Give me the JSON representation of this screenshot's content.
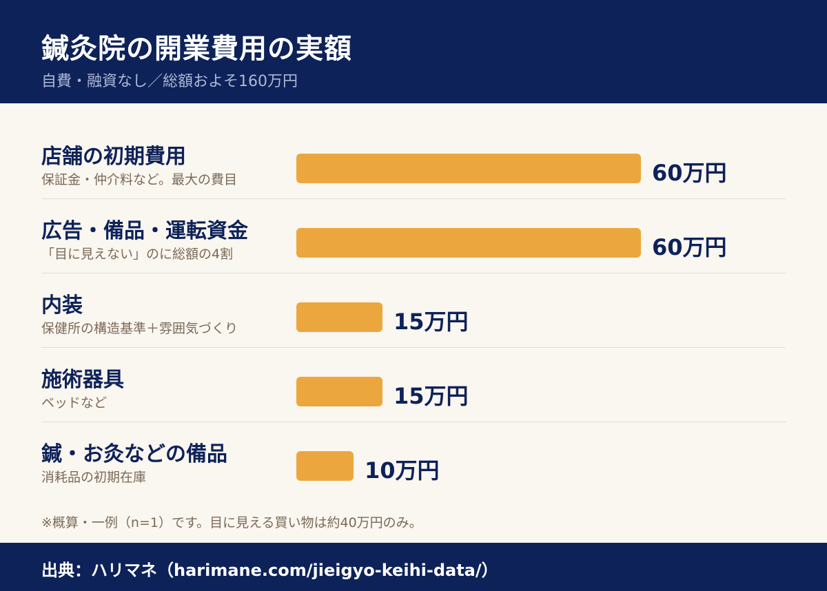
{
  "header": {
    "title": "鍼灸院の開業費用の実額",
    "subtitle": "自費・融資なし／総額およそ160万円"
  },
  "chart_data": {
    "type": "bar",
    "orientation": "horizontal",
    "title": "鍼灸院の開業費用の実額",
    "subtitle": "自費・融資なし／総額およそ160万円",
    "unit": "万円",
    "xlim": [
      0,
      60
    ],
    "grid": false,
    "legend": "none",
    "categories": [
      "店舗の初期費用",
      "広告・備品・運転資金",
      "内装",
      "施術器具",
      "鍼・お灸などの備品"
    ],
    "values": [
      60,
      60,
      15,
      15,
      10
    ],
    "items": [
      {
        "label": "店舗の初期費用",
        "sub": "保証金・仲介料など。最大の費目",
        "value": 60,
        "value_label": "60万円"
      },
      {
        "label": "広告・備品・運転資金",
        "sub": "「目に見えない」のに総額の4割",
        "value": 60,
        "value_label": "60万円"
      },
      {
        "label": "内装",
        "sub": "保健所の構造基準＋雰囲気づくり",
        "value": 15,
        "value_label": "15万円"
      },
      {
        "label": "施術器具",
        "sub": "ベッドなど",
        "value": 15,
        "value_label": "15万円"
      },
      {
        "label": "鍼・お灸などの備品",
        "sub": "消耗品の初期在庫",
        "value": 10,
        "value_label": "10万円"
      }
    ],
    "bar_color": "#EBA73E"
  },
  "note": "※概算・一例（n=1）です。目に見える買い物は約40万円のみ。",
  "footer": {
    "source": "出典：ハリマネ（harimane.com/jieigyo-keihi-data/）"
  },
  "colors": {
    "header_bg": "#0D2259",
    "page_bg": "#FAF6F0",
    "accent": "#EBA73E",
    "text_primary": "#0D2259",
    "text_muted": "#7A6A58"
  }
}
